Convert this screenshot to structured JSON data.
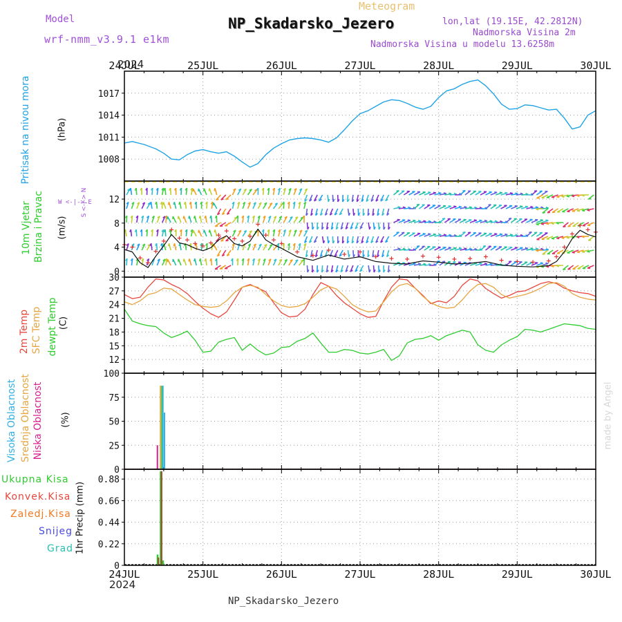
{
  "header": {
    "model_label": "Model",
    "model_name": "wrf-nmm_v3.9.1 e1km",
    "chart_type_label": "Meteogram",
    "station_title": "NP_Skadarsko_Jezero",
    "lonlat": "lon,lat (19.15E, 42.2812N)",
    "elevation": "Nadmorska Visina 2m",
    "model_elevation": "Nadmorska Visina u modelu 13.6258m",
    "year": "2024",
    "footer_station": "NP_Skadarsko_Jezero",
    "watermark": "made by Angel"
  },
  "colors": {
    "pressure": "#1ea3e6",
    "temp2m": "#e8463c",
    "sfc_temp": "#e6a540",
    "dewpt": "#2ecc2e",
    "high_cloud": "#2fb0e8",
    "mid_cloud": "#e6a540",
    "low_cloud": "#d81e8c",
    "total_precip": "#2ecc2e",
    "conv_precip": "#e8463c",
    "frozen_precip": "#f07820",
    "snow": "#4a4ae0",
    "graupel": "#28c0b0",
    "title_purple": "#9a4ad0",
    "model_purple": "#a050d8",
    "meteogram_orange": "#e8c070"
  },
  "panels": {
    "pressure": {
      "label1": "Pritisak na nivou mora",
      "unit": "(hPa)"
    },
    "wind": {
      "label1": "10m Vjetar",
      "label2": "Brzina i Pravac",
      "unit": "(m/s)",
      "compass_w": "W",
      "compass_e": "E",
      "compass_mid": "<-|->",
      "compass_n": "N",
      "compass_s": "S",
      "compass_v": "<-|->"
    },
    "temp": {
      "label1": "2m Temp",
      "label2": "SFC Temp",
      "label3": "dewpt Temp",
      "unit": "(C)"
    },
    "cloud": {
      "label1": "Visoka Oblacnost",
      "label2": "Srednja Oblacnost",
      "label3": "Niska Oblacnost",
      "unit": "(%)"
    },
    "precip": {
      "unit_label": "1hr Precip (mm)",
      "legend": [
        "Ukupna Kisa",
        "Konvek.Kisa",
        "Zaledj.Kisa",
        "Snijeg",
        "Grad"
      ]
    }
  },
  "chart_data": [
    {
      "id": "pressure",
      "type": "line",
      "ylabel": "(hPa)",
      "yticks": [
        "1008",
        "1011",
        "1014",
        "1017"
      ],
      "ylim": [
        1005,
        1020
      ],
      "x_days": [
        "24JUL",
        "25JUL",
        "26JUL",
        "27JUL",
        "28JUL",
        "29JUL",
        "30JUL"
      ],
      "x_days_top": [
        "24JUL",
        "25JUL",
        "26JUL",
        "27JUL",
        "28JUL",
        "29JUL",
        "30JUL"
      ],
      "x": [
        0,
        0.1,
        0.25,
        0.4,
        0.5,
        0.6,
        0.7,
        0.8,
        0.9,
        1.0,
        1.1,
        1.2,
        1.3,
        1.4,
        1.5,
        1.6,
        1.7,
        1.8,
        1.9,
        2.0,
        2.1,
        2.2,
        2.3,
        2.4,
        2.5,
        2.6,
        2.7,
        2.8,
        2.9,
        3.0,
        3.1,
        3.2,
        3.3,
        3.4,
        3.5,
        3.6,
        3.7,
        3.8,
        3.9,
        4.0,
        4.1,
        4.2,
        4.3,
        4.4,
        4.5,
        4.6,
        4.7,
        4.8,
        4.9,
        5.0,
        5.1,
        5.2,
        5.3,
        5.4,
        5.5,
        5.6,
        5.7,
        5.8,
        5.9,
        6.0
      ],
      "values": [
        1010.2,
        1010.4,
        1010.0,
        1009.4,
        1008.8,
        1008.0,
        1007.9,
        1008.6,
        1009.1,
        1009.3,
        1009.0,
        1008.8,
        1009.0,
        1008.4,
        1007.6,
        1006.9,
        1007.4,
        1008.6,
        1009.5,
        1010.1,
        1010.6,
        1010.8,
        1010.9,
        1010.8,
        1010.6,
        1010.3,
        1010.9,
        1012.0,
        1013.2,
        1014.2,
        1014.6,
        1015.2,
        1015.8,
        1016.1,
        1016.0,
        1015.6,
        1015.1,
        1014.8,
        1015.2,
        1016.4,
        1017.3,
        1017.6,
        1018.2,
        1018.6,
        1018.8,
        1018.0,
        1016.9,
        1015.5,
        1014.8,
        1014.9,
        1015.4,
        1015.3,
        1015.0,
        1014.7,
        1014.8,
        1013.6,
        1012.1,
        1012.4,
        1014.0,
        1014.6
      ]
    },
    {
      "id": "wind",
      "type": "line",
      "ylabel": "(m/s)",
      "yticks": [
        "0",
        "4",
        "8",
        "12"
      ],
      "ylim": [
        -1,
        15
      ],
      "x_days": [
        "24JUL",
        "25JUL",
        "26JUL",
        "27JUL",
        "28JUL",
        "29JUL",
        "30JUL"
      ],
      "series": [
        {
          "name": "wind speed",
          "x": [
            0,
            0.1,
            0.2,
            0.3,
            0.4,
            0.5,
            0.6,
            0.7,
            0.8,
            0.9,
            1.0,
            1.1,
            1.2,
            1.3,
            1.4,
            1.5,
            1.6,
            1.7,
            1.8,
            1.9,
            2.0,
            2.2,
            2.4,
            2.6,
            2.8,
            3.0,
            3.2,
            3.4,
            3.6,
            3.8,
            4.0,
            4.2,
            4.4,
            4.6,
            4.8,
            5.0,
            5.2,
            5.4,
            5.5,
            5.6,
            5.7,
            5.8,
            5.9,
            6.0
          ],
          "values": [
            3.6,
            3.2,
            1.4,
            0.6,
            2.5,
            4.2,
            6.1,
            4.7,
            4.4,
            3.8,
            3.4,
            3.9,
            5.2,
            5.9,
            4.6,
            4.2,
            5.0,
            7.0,
            5.2,
            4.4,
            3.8,
            2.4,
            1.8,
            2.7,
            2.0,
            2.4,
            1.6,
            1.3,
            1.2,
            1.7,
            1.5,
            1.2,
            1.3,
            1.6,
            1.0,
            0.8,
            0.7,
            0.9,
            1.6,
            3.2,
            5.4,
            6.8,
            6.1,
            5.7
          ]
        }
      ]
    },
    {
      "id": "temperature",
      "type": "line",
      "ylabel": "(C)",
      "yticks": [
        "12",
        "15",
        "18",
        "21",
        "24",
        "27",
        "30"
      ],
      "ylim": [
        9,
        30
      ],
      "x_days": [
        "24JUL",
        "25JUL",
        "26JUL",
        "27JUL",
        "28JUL",
        "29JUL",
        "30JUL"
      ],
      "x": [
        0,
        0.1,
        0.2,
        0.3,
        0.4,
        0.5,
        0.6,
        0.7,
        0.8,
        0.9,
        1.0,
        1.1,
        1.2,
        1.3,
        1.4,
        1.5,
        1.6,
        1.7,
        1.8,
        1.9,
        2.0,
        2.1,
        2.2,
        2.3,
        2.4,
        2.5,
        2.6,
        2.7,
        2.8,
        2.9,
        3.0,
        3.1,
        3.2,
        3.3,
        3.4,
        3.5,
        3.6,
        3.7,
        3.8,
        3.9,
        4.0,
        4.1,
        4.2,
        4.3,
        4.4,
        4.5,
        4.6,
        4.7,
        4.8,
        4.9,
        5.0,
        5.1,
        5.2,
        5.3,
        5.4,
        5.5,
        5.6,
        5.7,
        5.8,
        5.9,
        6.0
      ],
      "series": [
        {
          "name": "2m Temp",
          "values": [
            26.2,
            25.3,
            25.6,
            27.8,
            29.6,
            29.4,
            28.4,
            27.6,
            26.4,
            24.7,
            23.2,
            22.0,
            21.2,
            22.4,
            25.0,
            27.8,
            28.4,
            27.6,
            26.8,
            24.4,
            22.2,
            21.3,
            21.5,
            23.0,
            26.2,
            28.8,
            28.0,
            26.0,
            24.4,
            23.2,
            22.0,
            21.2,
            21.4,
            24.8,
            27.8,
            29.6,
            29.4,
            27.6,
            26.0,
            24.2,
            24.8,
            24.4,
            25.8,
            28.2,
            29.6,
            29.2,
            27.5,
            26.4,
            25.4,
            26.0,
            26.8,
            27.0,
            27.8,
            28.6,
            29.0,
            28.6,
            27.6,
            27.0,
            26.6,
            26.4,
            25.8
          ]
        },
        {
          "name": "SFC Temp",
          "values": [
            24.6,
            24.0,
            24.8,
            26.2,
            26.6,
            27.6,
            27.4,
            26.2,
            25.0,
            24.0,
            23.6,
            23.4,
            23.6,
            24.8,
            26.6,
            27.8,
            28.2,
            27.8,
            26.2,
            24.8,
            23.8,
            23.4,
            23.6,
            24.2,
            25.6,
            27.2,
            28.0,
            27.4,
            25.8,
            24.0,
            23.0,
            22.4,
            22.6,
            24.6,
            26.8,
            28.2,
            28.6,
            27.6,
            25.8,
            24.4,
            23.6,
            23.2,
            23.4,
            25.0,
            27.0,
            28.4,
            28.6,
            27.8,
            26.2,
            25.4,
            25.8,
            26.2,
            26.8,
            27.6,
            28.6,
            28.8,
            28.0,
            26.4,
            25.6,
            25.2,
            25.0
          ]
        },
        {
          "name": "dewpt Temp",
          "values": [
            23.0,
            20.4,
            19.8,
            19.4,
            19.2,
            17.8,
            16.8,
            17.4,
            18.2,
            16.2,
            13.6,
            13.8,
            15.8,
            16.4,
            16.8,
            14.0,
            15.4,
            14.0,
            13.0,
            13.4,
            14.6,
            14.8,
            16.0,
            16.6,
            17.8,
            15.6,
            13.6,
            13.6,
            14.2,
            14.0,
            13.4,
            13.2,
            13.6,
            14.2,
            11.8,
            12.8,
            15.6,
            16.4,
            16.6,
            17.2,
            16.2,
            17.2,
            17.8,
            18.4,
            18.0,
            15.2,
            14.0,
            13.6,
            15.2,
            16.2,
            17.0,
            18.6,
            18.4,
            18.0,
            18.6,
            19.2,
            19.8,
            19.6,
            19.4,
            18.8,
            18.6
          ]
        }
      ]
    },
    {
      "id": "clouds",
      "type": "bar",
      "ylabel": "(%)",
      "yticks": [
        "0",
        "25",
        "50",
        "75",
        "100"
      ],
      "ylim": [
        0,
        100
      ],
      "x_days": [
        "24JUL",
        "25JUL",
        "26JUL",
        "27JUL",
        "28JUL",
        "29JUL",
        "30JUL"
      ],
      "series": [
        {
          "name": "Niska Oblacnost",
          "x": [
            0.42
          ],
          "values": [
            25
          ]
        },
        {
          "name": "Srednja Oblacnost",
          "x": [
            0.46
          ],
          "values": [
            87
          ]
        },
        {
          "name": "Visoka Oblacnost",
          "x": [
            0.49,
            0.51
          ],
          "values": [
            87,
            59
          ]
        }
      ]
    },
    {
      "id": "precipitation",
      "type": "bar",
      "ylabel": "1hr Precip (mm)",
      "yticks": [
        "0",
        "0.22",
        "0.44",
        "0.66",
        "0.88"
      ],
      "ylim": [
        0,
        0.98
      ],
      "x_days": [
        "24JUL",
        "25JUL",
        "26JUL",
        "27JUL",
        "28JUL",
        "29JUL",
        "30JUL"
      ],
      "x_days_bottom": [
        "24JUL",
        "25JUL",
        "26JUL",
        "27JUL",
        "28JUL",
        "29JUL",
        "30JUL"
      ],
      "series": [
        {
          "name": "Ukupna Kisa",
          "x": [
            0.42,
            0.46,
            0.49
          ],
          "values": [
            0.11,
            0.96,
            0.05
          ]
        },
        {
          "name": "Konvek.Kisa",
          "x": [
            0.43,
            0.47
          ],
          "values": [
            0.08,
            0.96
          ]
        }
      ]
    }
  ]
}
